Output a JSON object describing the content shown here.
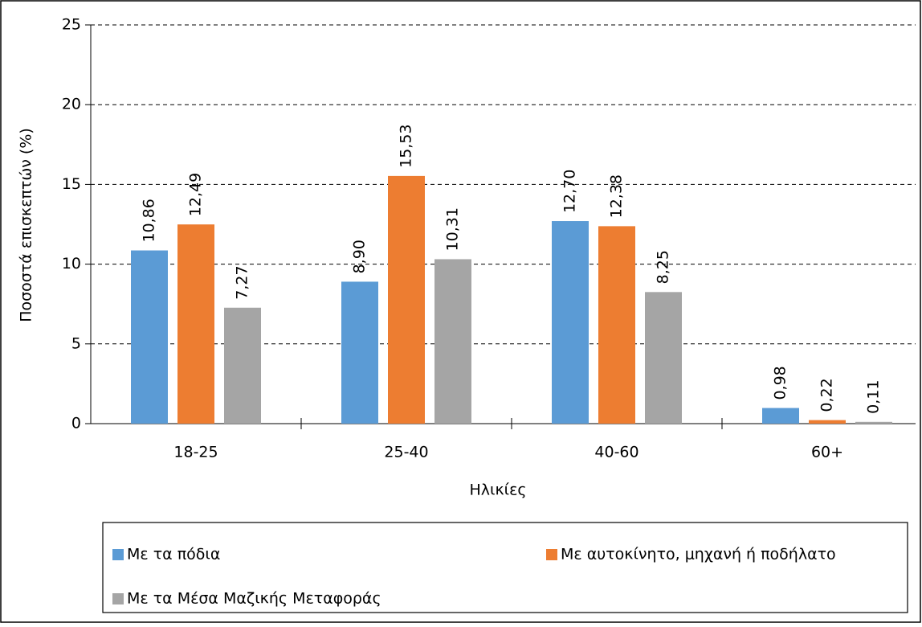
{
  "chart_data": {
    "type": "bar",
    "x_label": "Ηλικίες",
    "y_label": "Ποσοστά επισκεπτών (%)",
    "categories": [
      "18-25",
      "25-40",
      "40-60",
      "60+"
    ],
    "series": [
      {
        "name": "Με τα πόδια",
        "color": "#5b9bd5",
        "values": [
          10.86,
          8.9,
          12.7,
          0.98
        ],
        "value_labels": [
          "10,86",
          "8,90",
          "12,70",
          "0,98"
        ]
      },
      {
        "name": "Με αυτοκίνητο, μηχανή ή ποδήλατο",
        "color": "#ed7d31",
        "values": [
          12.49,
          15.53,
          12.38,
          0.22
        ],
        "value_labels": [
          "12,49",
          "15,53",
          "12,38",
          "0,22"
        ]
      },
      {
        "name": "Με τα Μέσα Μαζικής Μεταφοράς",
        "color": "#a5a5a5",
        "values": [
          7.27,
          10.31,
          8.25,
          0.11
        ],
        "value_labels": [
          "7,27",
          "10,31",
          "8,25",
          "0,11"
        ]
      }
    ],
    "ylim": [
      0,
      25
    ],
    "yticks": [
      0,
      5,
      10,
      15,
      20,
      25
    ],
    "grid": true,
    "legend": "bottom"
  }
}
